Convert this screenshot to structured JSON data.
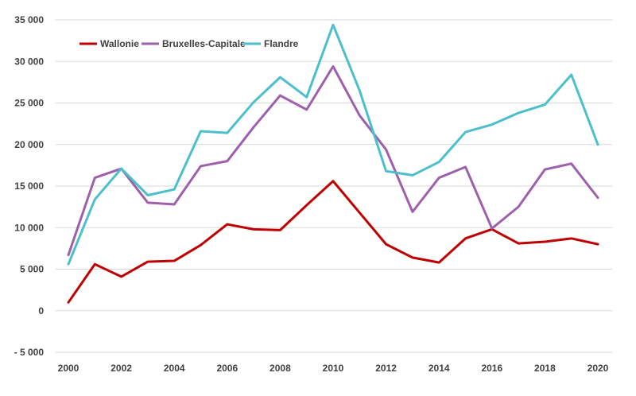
{
  "chart_data": {
    "type": "line",
    "title": "",
    "xlabel": "",
    "ylabel": "",
    "x": [
      2000,
      2001,
      2002,
      2003,
      2004,
      2005,
      2006,
      2007,
      2008,
      2009,
      2010,
      2011,
      2012,
      2013,
      2014,
      2015,
      2016,
      2017,
      2018,
      2019,
      2020
    ],
    "x_tick_labels": [
      "2000",
      "2002",
      "2004",
      "2006",
      "2008",
      "2010",
      "2012",
      "2014",
      "2016",
      "2018",
      "2020"
    ],
    "x_tick_values": [
      2000,
      2002,
      2004,
      2006,
      2008,
      2010,
      2012,
      2014,
      2016,
      2018,
      2020
    ],
    "ylim": [
      -5000,
      35000
    ],
    "y_ticks": [
      {
        "value": 35000,
        "label": "35 000"
      },
      {
        "value": 30000,
        "label": "30 000"
      },
      {
        "value": 25000,
        "label": "25 000"
      },
      {
        "value": 20000,
        "label": "20 000"
      },
      {
        "value": 15000,
        "label": "15 000"
      },
      {
        "value": 10000,
        "label": "10 000"
      },
      {
        "value": 5000,
        "label": "5 000"
      },
      {
        "value": 0,
        "label": "0"
      },
      {
        "value": -5000,
        "label": "- 5 000"
      }
    ],
    "grid": true,
    "legend_position": "top-left",
    "series": [
      {
        "name": "Wallonie",
        "color": "#c00000",
        "values": [
          1000,
          5600,
          4100,
          5900,
          6000,
          7900,
          10400,
          9800,
          9700,
          12700,
          15600,
          11800,
          8000,
          6400,
          5800,
          8700,
          9800,
          8100,
          8300,
          8700,
          8000
        ]
      },
      {
        "name": "Bruxelles-Capitale",
        "color": "#9e5fad",
        "values": [
          6700,
          16000,
          17100,
          13000,
          12800,
          17400,
          18000,
          22100,
          25900,
          24200,
          29400,
          23500,
          19400,
          11900,
          16000,
          17300,
          9900,
          12500,
          17000,
          17700,
          13600
        ]
      },
      {
        "name": "Flandre",
        "color": "#4bbfcc",
        "values": [
          5600,
          13400,
          17100,
          13900,
          14600,
          21600,
          21400,
          25100,
          28100,
          25700,
          34400,
          26500,
          16800,
          16300,
          17900,
          21500,
          22400,
          23800,
          24800,
          28400,
          20000
        ]
      }
    ]
  }
}
